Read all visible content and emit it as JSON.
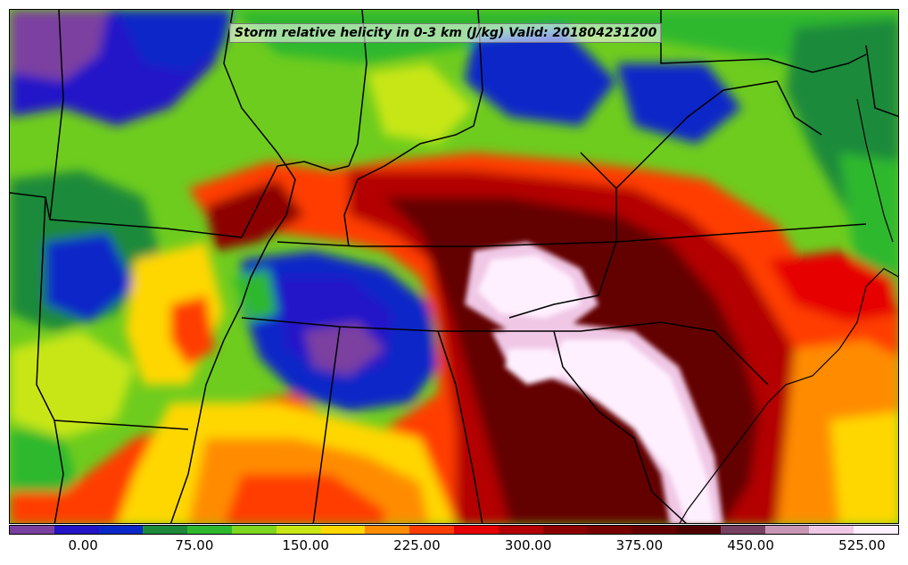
{
  "title": "Storm relative helicity in 0-3 km (J/kg) Valid: 201804231200",
  "legend": {
    "colors": [
      "#7b3fa0",
      "#2414c8",
      "#0a28c8",
      "#1c8a3a",
      "#2eb82e",
      "#7ed61e",
      "#c8e614",
      "#ffd700",
      "#ff8c00",
      "#ff3c00",
      "#e60000",
      "#b40000",
      "#8c0000",
      "#780000",
      "#640000",
      "#500000",
      "#784060",
      "#c896b4",
      "#f0c8e6",
      "#fff0ff"
    ],
    "ticks": [
      "0.00",
      "75.00",
      "150.00",
      "225.00",
      "300.00",
      "375.00",
      "450.00",
      "525.00"
    ],
    "tick_values": [
      0,
      75,
      150,
      225,
      300,
      375,
      450,
      525
    ],
    "range": [
      -50,
      550
    ]
  }
}
